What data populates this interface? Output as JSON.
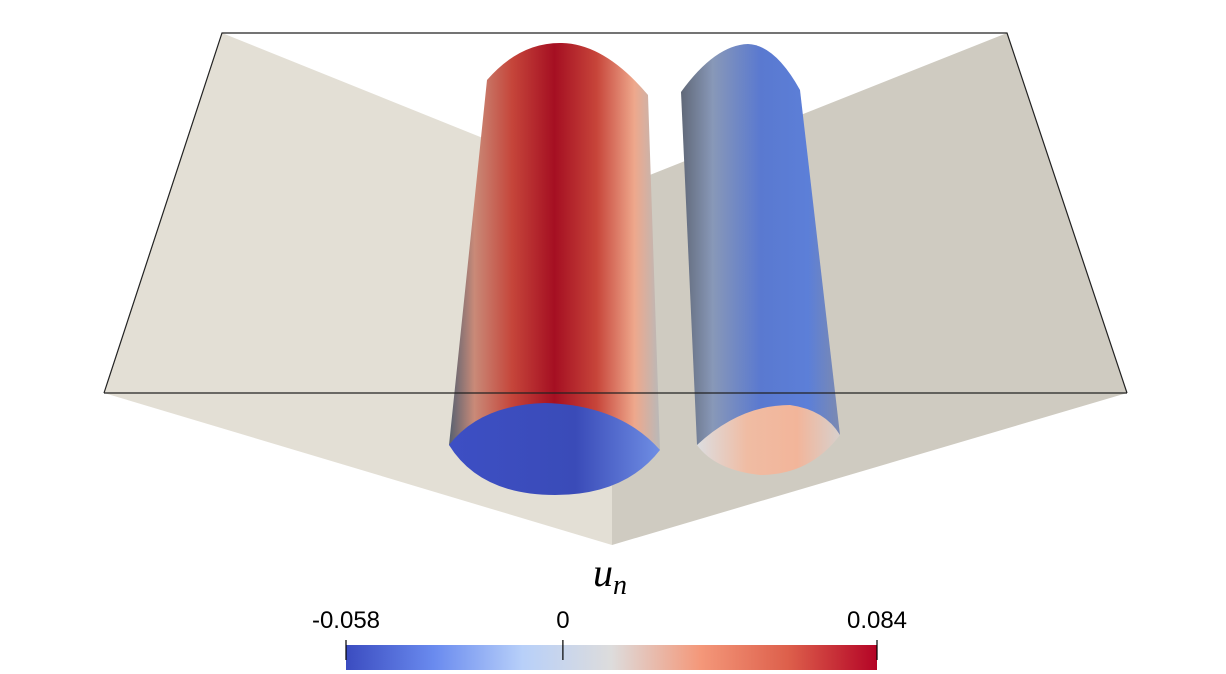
{
  "colorbar": {
    "label": {
      "symbol": "u",
      "subscript": "n"
    },
    "range": [
      -0.058,
      0.084
    ],
    "ticks": [
      -0.058,
      0,
      0.084
    ],
    "colormap": [
      "#3b4cc0",
      "#6a8bef",
      "#b8d0f9",
      "#dddcdc",
      "#f4987a",
      "#dd5f4b",
      "#b40426"
    ]
  }
}
